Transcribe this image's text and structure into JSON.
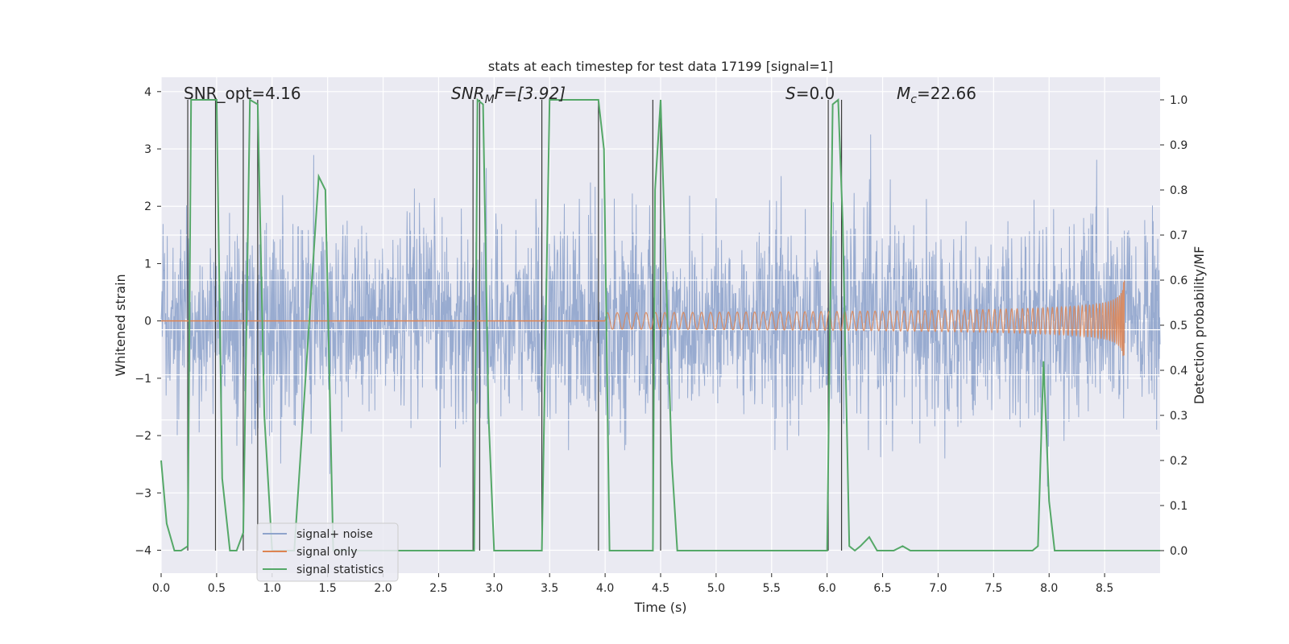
{
  "chart_data": {
    "type": "line",
    "title": "stats at each timestep for test data 17199 [signal=1]",
    "xlabel": "Time (s)",
    "ylabel_left": "Whitened strain",
    "ylabel_right": "Detection probability/MF",
    "xlim": [
      0.0,
      9.0
    ],
    "ylim_left": [
      -4.4,
      4.25
    ],
    "ylim_right": [
      -0.05,
      1.05
    ],
    "xticks": [
      0.0,
      0.5,
      1.0,
      1.5,
      2.0,
      2.5,
      3.0,
      3.5,
      4.0,
      4.5,
      5.0,
      5.5,
      6.0,
      6.5,
      7.0,
      7.5,
      8.0,
      8.5
    ],
    "xtick_labels": [
      "0.0",
      "0.5",
      "1.0",
      "1.5",
      "2.0",
      "2.5",
      "3.0",
      "3.5",
      "4.0",
      "4.5",
      "5.0",
      "5.5",
      "6.0",
      "6.5",
      "7.0",
      "7.5",
      "8.0",
      "8.5"
    ],
    "yticks_left": [
      -4,
      -3,
      -2,
      -1,
      0,
      1,
      2,
      3,
      4
    ],
    "ytick_labels_left": [
      "−4",
      "−3",
      "−2",
      "−1",
      "0",
      "1",
      "2",
      "3",
      "4"
    ],
    "yticks_right": [
      0.0,
      0.1,
      0.2,
      0.3,
      0.4,
      0.5,
      0.6,
      0.7,
      0.8,
      0.9,
      1.0
    ],
    "ytick_labels_right": [
      "0.0",
      "0.1",
      "0.2",
      "0.3",
      "0.4",
      "0.5",
      "0.6",
      "0.7",
      "0.8",
      "0.9",
      "1.0"
    ],
    "colors": {
      "noise": "#8fa4cc",
      "signal": "#dd8452",
      "stats": "#55a868",
      "events": "#3a3a3a",
      "background": "#eaeaf2",
      "grid": "#ffffff"
    },
    "annotations": {
      "snr_opt": "SNR_opt=4.16",
      "snr_mf_base": "SNR",
      "snr_mf_sub": "M",
      "snr_mf_rest": "F=[3.92]",
      "s_base": "S",
      "s_rest": "=0.0",
      "mc_base": "M",
      "mc_sub": "c",
      "mc_rest": "=22.66"
    },
    "legend": {
      "placement": "lower-left",
      "entries": [
        "signal+ noise",
        "signal only",
        "signal statistics"
      ]
    },
    "extra_hlines_right": [
      0.7,
      0.6,
      0.49,
      0.39,
      0.29
    ],
    "event_lines": [
      0.24,
      0.49,
      0.74,
      0.87,
      2.81,
      2.87,
      3.43,
      3.94,
      4.43,
      4.5,
      6.01,
      6.13
    ],
    "signal_only": {
      "description_free": true,
      "t_start": 4.0,
      "t_merge": 8.68,
      "amplitude_peak": 0.9,
      "cycles": 85
    },
    "noise_envelope": {
      "sigma": 0.85,
      "t_end": 9.0
    },
    "series": [
      {
        "name": "signal statistics",
        "axis": "right",
        "x": [
          0.0,
          0.05,
          0.12,
          0.18,
          0.24,
          0.27,
          0.3,
          0.5,
          0.55,
          0.62,
          0.68,
          0.74,
          0.8,
          0.87,
          0.93,
          1.0,
          1.2,
          1.42,
          1.48,
          1.55,
          1.6,
          1.8,
          2.0,
          2.6,
          2.75,
          2.82,
          2.85,
          2.9,
          2.95,
          3.0,
          3.38,
          3.43,
          3.5,
          3.7,
          3.94,
          3.99,
          4.04,
          4.1,
          4.25,
          4.43,
          4.45,
          4.5,
          4.6,
          4.65,
          5.0,
          5.5,
          6.0,
          6.05,
          6.1,
          6.14,
          6.2,
          6.25,
          6.3,
          6.38,
          6.45,
          6.6,
          6.68,
          6.75,
          7.0,
          7.5,
          7.85,
          7.9,
          7.95,
          8.0,
          8.05,
          8.15,
          8.5,
          9.0
        ],
        "y": [
          0.2,
          0.06,
          0.0,
          0.0,
          0.01,
          1.0,
          1.0,
          1.0,
          0.16,
          0.0,
          0.0,
          0.04,
          1.0,
          0.99,
          0.3,
          0.0,
          0.0,
          0.83,
          0.8,
          0.0,
          0.0,
          0.0,
          0.0,
          0.0,
          0.0,
          0.0,
          1.0,
          0.99,
          0.3,
          0.0,
          0.0,
          0.0,
          1.0,
          1.0,
          1.0,
          0.89,
          0.0,
          0.0,
          0.0,
          0.0,
          0.8,
          1.0,
          0.2,
          0.0,
          0.0,
          0.0,
          0.0,
          0.99,
          1.0,
          0.73,
          0.01,
          0.0,
          0.01,
          0.03,
          0.0,
          0.0,
          0.01,
          0.0,
          0.0,
          0.0,
          0.0,
          0.01,
          0.42,
          0.11,
          0.0,
          0.0,
          0.0,
          0.0
        ]
      }
    ]
  }
}
